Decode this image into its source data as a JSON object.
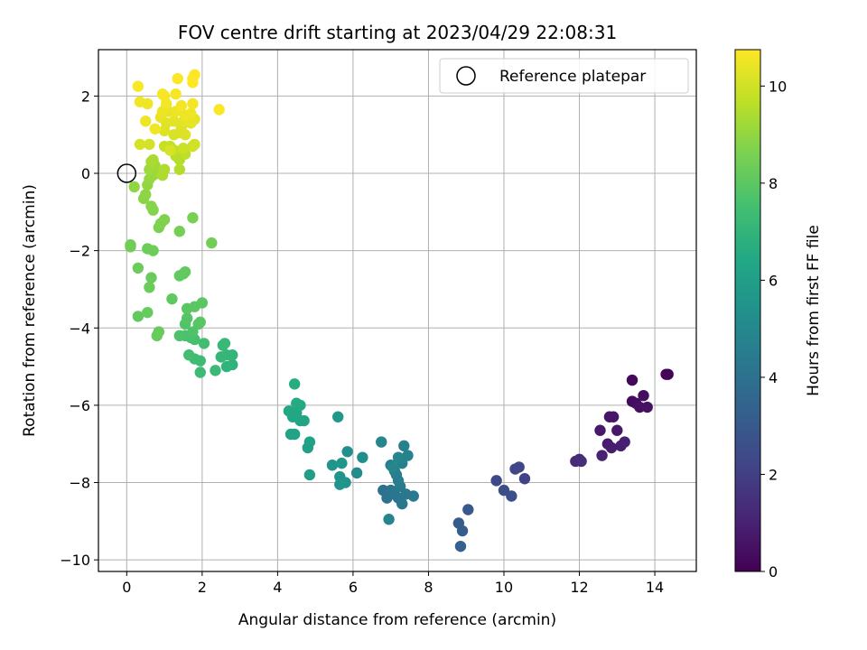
{
  "chart_data": {
    "type": "scatter",
    "title": "FOV centre drift starting at 2023/04/29 22:08:31",
    "xlabel": "Angular distance from reference (arcmin)",
    "ylabel": "Rotation from reference (arcmin)",
    "xlim": [
      -0.75,
      15.1
    ],
    "ylim": [
      -10.3,
      3.2
    ],
    "xticks": [
      0,
      2,
      4,
      6,
      8,
      10,
      12,
      14
    ],
    "yticks": [
      -10,
      -8,
      -6,
      -4,
      -2,
      0,
      2
    ],
    "grid": true,
    "legend": {
      "placement": "top-right",
      "entries": [
        "Reference platepar"
      ]
    },
    "reference_point": {
      "x": 0,
      "y": 0
    },
    "colorbar": {
      "label": "Hours from first FF file",
      "range": [
        0,
        10.75
      ],
      "ticks": [
        0,
        2,
        4,
        6,
        8,
        10
      ],
      "colormap": "viridis"
    },
    "points": [
      [
        14.3,
        -5.2,
        0.05
      ],
      [
        14.35,
        -5.2,
        0.1
      ],
      [
        13.4,
        -5.35,
        0.2
      ],
      [
        13.4,
        -5.9,
        0.3
      ],
      [
        13.5,
        -5.95,
        0.35
      ],
      [
        13.7,
        -5.75,
        0.4
      ],
      [
        13.6,
        -6.05,
        0.45
      ],
      [
        13.8,
        -6.05,
        0.5
      ],
      [
        12.8,
        -6.3,
        0.6
      ],
      [
        12.9,
        -6.3,
        0.65
      ],
      [
        13.0,
        -6.65,
        0.7
      ],
      [
        12.55,
        -6.65,
        0.75
      ],
      [
        12.75,
        -7.0,
        0.8
      ],
      [
        12.85,
        -7.1,
        0.85
      ],
      [
        13.1,
        -7.05,
        0.9
      ],
      [
        13.2,
        -6.95,
        0.95
      ],
      [
        12.6,
        -7.3,
        1.0
      ],
      [
        12.0,
        -7.4,
        1.2
      ],
      [
        11.9,
        -7.45,
        1.3
      ],
      [
        12.05,
        -7.45,
        1.4
      ],
      [
        10.55,
        -7.9,
        2.1
      ],
      [
        10.3,
        -7.65,
        2.2
      ],
      [
        10.4,
        -7.6,
        2.25
      ],
      [
        9.8,
        -7.95,
        2.4
      ],
      [
        10.0,
        -8.2,
        2.5
      ],
      [
        10.2,
        -8.35,
        2.6
      ],
      [
        9.05,
        -8.7,
        3.0
      ],
      [
        8.8,
        -9.05,
        3.1
      ],
      [
        8.9,
        -9.25,
        3.2
      ],
      [
        8.85,
        -9.65,
        3.3
      ],
      [
        6.8,
        -8.2,
        4.0
      ],
      [
        6.9,
        -8.4,
        4.05
      ],
      [
        7.0,
        -8.2,
        4.1
      ],
      [
        7.1,
        -8.3,
        4.15
      ],
      [
        7.2,
        -8.4,
        4.2
      ],
      [
        7.3,
        -8.55,
        4.25
      ],
      [
        7.4,
        -8.3,
        4.3
      ],
      [
        7.6,
        -8.35,
        4.35
      ],
      [
        7.25,
        -8.1,
        4.4
      ],
      [
        7.15,
        -7.8,
        4.45
      ],
      [
        7.2,
        -7.95,
        4.5
      ],
      [
        7.0,
        -7.55,
        4.55
      ],
      [
        7.1,
        -7.7,
        4.6
      ],
      [
        7.3,
        -7.5,
        4.65
      ],
      [
        7.35,
        -7.05,
        4.7
      ],
      [
        7.45,
        -7.3,
        4.75
      ],
      [
        7.2,
        -7.35,
        4.8
      ],
      [
        6.95,
        -8.95,
        4.85
      ],
      [
        6.75,
        -6.95,
        4.9
      ],
      [
        7.05,
        -7.6,
        4.95
      ],
      [
        6.1,
        -7.75,
        5.2
      ],
      [
        6.25,
        -7.35,
        5.25
      ],
      [
        5.85,
        -7.2,
        5.3
      ],
      [
        5.8,
        -8.0,
        5.4
      ],
      [
        5.65,
        -7.85,
        5.45
      ],
      [
        5.65,
        -8.05,
        5.5
      ],
      [
        5.45,
        -7.55,
        5.55
      ],
      [
        5.7,
        -7.5,
        5.6
      ],
      [
        5.6,
        -6.3,
        5.7
      ],
      [
        4.85,
        -7.8,
        6.0
      ],
      [
        4.8,
        -7.1,
        6.05
      ],
      [
        4.85,
        -6.95,
        6.1
      ],
      [
        4.45,
        -6.75,
        6.15
      ],
      [
        4.35,
        -6.75,
        6.2
      ],
      [
        4.7,
        -6.4,
        6.25
      ],
      [
        4.6,
        -6.4,
        6.3
      ],
      [
        4.4,
        -6.3,
        6.35
      ],
      [
        4.5,
        -6.2,
        6.4
      ],
      [
        4.3,
        -6.15,
        6.45
      ],
      [
        4.6,
        -6.0,
        6.5
      ],
      [
        4.5,
        -5.95,
        6.55
      ],
      [
        4.45,
        -5.45,
        6.6
      ],
      [
        2.8,
        -4.95,
        6.9
      ],
      [
        2.65,
        -5.0,
        6.95
      ],
      [
        2.8,
        -4.7,
        7.0
      ],
      [
        2.65,
        -4.7,
        7.05
      ],
      [
        2.5,
        -4.75,
        7.1
      ],
      [
        2.55,
        -4.45,
        7.15
      ],
      [
        2.6,
        -4.4,
        7.2
      ],
      [
        2.35,
        -5.1,
        7.25
      ],
      [
        1.95,
        -5.15,
        7.3
      ],
      [
        1.95,
        -4.85,
        7.35
      ],
      [
        1.8,
        -4.8,
        7.4
      ],
      [
        1.65,
        -4.7,
        7.45
      ],
      [
        2.05,
        -4.4,
        7.5
      ],
      [
        1.8,
        -4.3,
        7.55
      ],
      [
        1.7,
        -4.25,
        7.6
      ],
      [
        1.55,
        -4.2,
        7.65
      ],
      [
        1.4,
        -4.2,
        7.7
      ],
      [
        1.75,
        -4.1,
        7.75
      ],
      [
        1.55,
        -3.9,
        7.8
      ],
      [
        1.6,
        -3.75,
        7.85
      ],
      [
        1.9,
        -3.9,
        7.9
      ],
      [
        1.95,
        -3.85,
        7.95
      ],
      [
        1.6,
        -3.5,
        7.95
      ],
      [
        1.8,
        -3.45,
        8.0
      ],
      [
        2.0,
        -3.35,
        8.0
      ],
      [
        1.2,
        -3.25,
        8.05
      ],
      [
        1.4,
        -2.65,
        8.1
      ],
      [
        1.5,
        -2.6,
        8.1
      ],
      [
        1.55,
        -2.55,
        8.15
      ],
      [
        0.3,
        -3.7,
        8.15
      ],
      [
        0.55,
        -3.6,
        8.2
      ],
      [
        0.85,
        -4.1,
        8.2
      ],
      [
        0.8,
        -4.2,
        8.25
      ],
      [
        0.65,
        -2.7,
        8.25
      ],
      [
        0.6,
        -2.95,
        8.3
      ],
      [
        0.3,
        -2.45,
        8.3
      ],
      [
        0.7,
        -2.0,
        8.35
      ],
      [
        0.55,
        -1.95,
        8.35
      ],
      [
        0.1,
        -1.85,
        8.4
      ],
      [
        0.1,
        -1.9,
        8.4
      ],
      [
        2.25,
        -1.8,
        8.45
      ],
      [
        1.4,
        -1.5,
        8.5
      ],
      [
        1.75,
        -1.15,
        8.55
      ],
      [
        0.85,
        -1.4,
        8.6
      ],
      [
        0.9,
        -1.3,
        8.65
      ],
      [
        1.0,
        -1.2,
        8.7
      ],
      [
        0.7,
        -0.95,
        8.75
      ],
      [
        0.65,
        -0.85,
        8.8
      ],
      [
        0.45,
        -0.65,
        8.85
      ],
      [
        0.5,
        -0.55,
        8.9
      ],
      [
        0.2,
        -0.35,
        8.95
      ],
      [
        0.55,
        -0.3,
        9.0
      ],
      [
        0.6,
        -0.15,
        9.05
      ],
      [
        0.7,
        -0.05,
        9.1
      ],
      [
        0.85,
        0.0,
        9.15
      ],
      [
        0.6,
        0.1,
        9.2
      ],
      [
        0.75,
        0.2,
        9.25
      ],
      [
        0.65,
        0.3,
        9.3
      ],
      [
        0.7,
        0.35,
        9.35
      ],
      [
        0.95,
        -0.05,
        9.4
      ],
      [
        1.0,
        0.1,
        9.45
      ],
      [
        1.4,
        0.1,
        9.5
      ],
      [
        1.4,
        0.35,
        9.55
      ],
      [
        1.3,
        0.45,
        9.6
      ],
      [
        1.5,
        0.55,
        9.65
      ],
      [
        1.55,
        0.5,
        9.7
      ],
      [
        1.25,
        0.6,
        9.75
      ],
      [
        1.15,
        0.7,
        9.8
      ],
      [
        1.0,
        0.7,
        9.85
      ],
      [
        1.5,
        0.65,
        9.9
      ],
      [
        1.75,
        0.7,
        9.95
      ],
      [
        1.8,
        0.75,
        10.0
      ],
      [
        0.6,
        0.75,
        10.05
      ],
      [
        0.35,
        0.75,
        10.1
      ],
      [
        1.15,
        0.6,
        10.1
      ],
      [
        1.25,
        1.0,
        10.15
      ],
      [
        1.4,
        1.05,
        10.15
      ],
      [
        1.55,
        1.0,
        10.2
      ],
      [
        1.45,
        1.2,
        10.2
      ],
      [
        1.0,
        1.1,
        10.25
      ],
      [
        1.05,
        1.3,
        10.25
      ],
      [
        1.25,
        1.35,
        10.3
      ],
      [
        1.5,
        1.35,
        10.3
      ],
      [
        1.7,
        1.3,
        10.35
      ],
      [
        1.8,
        1.4,
        10.35
      ],
      [
        0.9,
        1.45,
        10.4
      ],
      [
        1.1,
        1.6,
        10.4
      ],
      [
        0.95,
        1.6,
        10.45
      ],
      [
        1.3,
        1.6,
        10.45
      ],
      [
        1.55,
        1.5,
        10.5
      ],
      [
        1.7,
        1.55,
        10.5
      ],
      [
        0.5,
        1.35,
        10.5
      ],
      [
        0.75,
        1.15,
        10.55
      ],
      [
        0.35,
        1.85,
        10.55
      ],
      [
        0.55,
        1.8,
        10.55
      ],
      [
        1.05,
        1.8,
        10.6
      ],
      [
        1.45,
        1.75,
        10.6
      ],
      [
        1.75,
        1.8,
        10.6
      ],
      [
        0.95,
        2.05,
        10.65
      ],
      [
        1.0,
        2.0,
        10.65
      ],
      [
        1.3,
        2.05,
        10.65
      ],
      [
        2.45,
        1.65,
        10.7
      ],
      [
        0.3,
        2.25,
        10.7
      ],
      [
        1.35,
        2.45,
        10.7
      ],
      [
        1.75,
        2.45,
        10.75
      ],
      [
        1.75,
        2.35,
        10.75
      ],
      [
        1.8,
        2.55,
        10.75
      ]
    ]
  }
}
